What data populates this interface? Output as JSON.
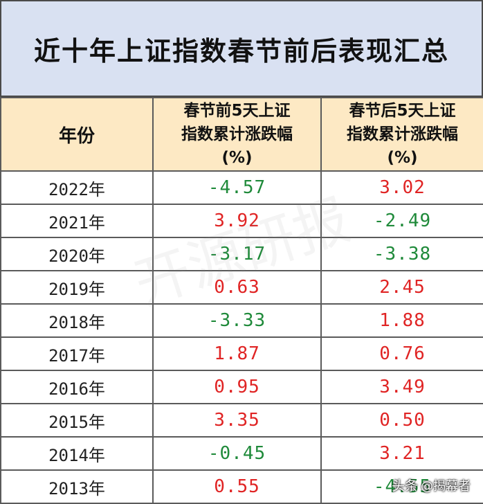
{
  "title": "近十年上证指数春节前后表现汇总",
  "headers": {
    "year": "年份",
    "before_line1": "春节前5天上证",
    "before_line2": "指数累计涨跌幅",
    "before_line3": "(%)",
    "after_line1": "春节后5天上证",
    "after_line2": "指数累计涨跌幅",
    "after_line3": "(%)"
  },
  "rows": [
    {
      "year": "2022年",
      "before": "-4.57",
      "after": "3.02"
    },
    {
      "year": "2021年",
      "before": "3.92",
      "after": "-2.49"
    },
    {
      "year": "2020年",
      "before": "-3.17",
      "after": "-3.38"
    },
    {
      "year": "2019年",
      "before": "0.63",
      "after": "2.45"
    },
    {
      "year": "2018年",
      "before": "-3.33",
      "after": "1.88"
    },
    {
      "year": "2017年",
      "before": "1.87",
      "after": "0.76"
    },
    {
      "year": "2016年",
      "before": "0.95",
      "after": "3.49"
    },
    {
      "year": "2015年",
      "before": "3.35",
      "after": "0.50"
    },
    {
      "year": "2014年",
      "before": "-0.45",
      "after": "3.21"
    },
    {
      "year": "2013年",
      "before": "0.55",
      "after": "-4.55"
    }
  ],
  "colors": {
    "positive": "#e02424",
    "negative": "#1f8a3a",
    "title_bg": "#d9e1f2",
    "header_bg": "#fde9c4"
  },
  "watermark": "开源研报",
  "credit": {
    "platform": "头条",
    "handle": "@揭幕者"
  }
}
